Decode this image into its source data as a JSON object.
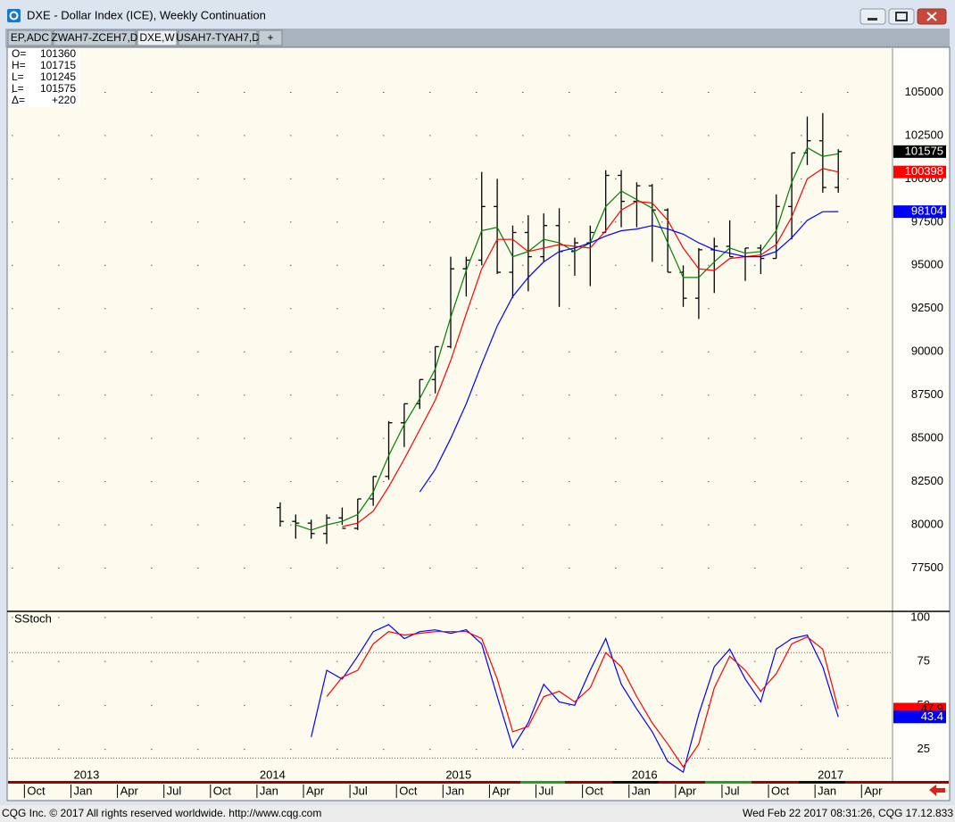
{
  "window": {
    "title": "DXE - Dollar Index (ICE), Weekly Continuation",
    "tabs": [
      "EP,ADC",
      "ZWAH7-ZCEH7,D",
      "DXE,W",
      "USAH7-TYAH7,D",
      "+"
    ]
  },
  "ohlc_info": [
    {
      "label": "O=",
      "value": 101360
    },
    {
      "label": "H=",
      "value": 101715
    },
    {
      "label": "L=",
      "value": 101245
    },
    {
      "label": "L=",
      "value": 101575
    },
    {
      "label": "Δ=",
      "value": "+220"
    }
  ],
  "chart_data": [
    {
      "type": "ohlc",
      "color": "#000000",
      "x": [
        "2014-02",
        "2014-03",
        "2014-04",
        "2014-05",
        "2014-06",
        "2014-07",
        "2014-08",
        "2014-09",
        "2014-10",
        "2014-11",
        "2014-12",
        "2015-01",
        "2015-02",
        "2015-03",
        "2015-04",
        "2015-05",
        "2015-06",
        "2015-07",
        "2015-08",
        "2015-09",
        "2015-10",
        "2015-11",
        "2015-12",
        "2016-01",
        "2016-02",
        "2016-03",
        "2016-04",
        "2016-05",
        "2016-06",
        "2016-07",
        "2016-08",
        "2016-09",
        "2016-10",
        "2016-11",
        "2016-12",
        "2017-01",
        "2017-02"
      ],
      "open": [
        81000,
        80200,
        80100,
        79500,
        80400,
        79800,
        81500,
        82800,
        85900,
        87000,
        88400,
        90300,
        94800,
        95300,
        98400,
        94600,
        96900,
        95500,
        97300,
        95800,
        96300,
        96900,
        100200,
        98700,
        99600,
        98200,
        94600,
        93100,
        95900,
        96100,
        95500,
        96000,
        95400,
        98400,
        101500,
        102200,
        99500
      ],
      "high": [
        81300,
        80600,
        80300,
        80600,
        81000,
        81500,
        82800,
        86000,
        87000,
        88400,
        90300,
        95500,
        95500,
        100400,
        100000,
        97300,
        97900,
        98000,
        98300,
        96600,
        97300,
        100500,
        100500,
        99800,
        99700,
        98300,
        95000,
        96000,
        96600,
        97600,
        96000,
        96200,
        99100,
        101500,
        103600,
        103800,
        101715
      ],
      "low": [
        79900,
        79200,
        79200,
        78900,
        80000,
        79700,
        81100,
        82600,
        84500,
        86700,
        87600,
        90200,
        93200,
        95000,
        94500,
        93100,
        93500,
        95200,
        92600,
        94400,
        93800,
        96900,
        97200,
        97200,
        95200,
        94600,
        92600,
        91900,
        93400,
        95500,
        94100,
        94500,
        95400,
        96500,
        100800,
        99200,
        99200
      ],
      "close": [
        80200,
        80100,
        79500,
        80400,
        79800,
        81500,
        82800,
        85900,
        87000,
        88400,
        90300,
        94800,
        95300,
        98400,
        94600,
        96900,
        95500,
        97300,
        95800,
        96300,
        96900,
        100200,
        98700,
        99600,
        98200,
        94600,
        93100,
        95900,
        96100,
        95500,
        96000,
        95400,
        98400,
        101500,
        102200,
        99500,
        101575
      ],
      "series": [
        {
          "color": "#008000",
          "values": [
            null,
            80000,
            79700,
            80000,
            80200,
            80600,
            81900,
            84000,
            85800,
            87300,
            89000,
            92000,
            94700,
            97000,
            97200,
            95500,
            95800,
            96500,
            96300,
            95800,
            96300,
            98400,
            99300,
            98800,
            98300,
            96300,
            94300,
            94300,
            95200,
            96000,
            95700,
            95800,
            97000,
            99800,
            101800,
            101300,
            101450
          ]
        },
        {
          "color": "#ff0000",
          "values": [
            null,
            null,
            null,
            null,
            79900,
            80100,
            80800,
            82200,
            83800,
            85500,
            87200,
            89500,
            92200,
            94800,
            96500,
            96500,
            95800,
            96000,
            96200,
            96100,
            96000,
            97000,
            98200,
            98700,
            98600,
            97600,
            96000,
            94800,
            94700,
            95400,
            95500,
            95600,
            96200,
            97800,
            100000,
            100600,
            100398
          ]
        },
        {
          "color": "#0000ff",
          "values": [
            null,
            null,
            null,
            null,
            null,
            null,
            null,
            null,
            null,
            81900,
            83200,
            85000,
            87000,
            89300,
            91500,
            93200,
            94300,
            95200,
            95800,
            96000,
            96300,
            96700,
            97000,
            97100,
            97300,
            97100,
            96800,
            96300,
            95900,
            95700,
            95500,
            95500,
            95800,
            96600,
            97600,
            98100,
            98104
          ]
        }
      ],
      "xlim": [
        "2012-09",
        "2017-06"
      ],
      "ylim": [
        75000,
        107500
      ],
      "yticks": [
        77500,
        80000,
        82500,
        85000,
        87500,
        90000,
        92500,
        95000,
        97500,
        100000,
        102500,
        105000
      ],
      "grid": true
    },
    {
      "type": "line",
      "title": "SStoch",
      "x": [
        "2014-04",
        "2014-05",
        "2014-06",
        "2014-07",
        "2014-08",
        "2014-09",
        "2014-10",
        "2014-11",
        "2014-12",
        "2015-01",
        "2015-02",
        "2015-03",
        "2015-04",
        "2015-05",
        "2015-06",
        "2015-07",
        "2015-08",
        "2015-09",
        "2015-10",
        "2015-11",
        "2015-12",
        "2016-01",
        "2016-02",
        "2016-03",
        "2016-04",
        "2016-05",
        "2016-06",
        "2016-07",
        "2016-08",
        "2016-09",
        "2016-10",
        "2016-11",
        "2016-12",
        "2017-01",
        "2017-02"
      ],
      "series": [
        {
          "color": "#0000ff",
          "values": [
            32,
            70,
            65,
            78,
            92,
            96,
            88,
            92,
            93,
            91,
            93,
            85,
            55,
            26,
            40,
            62,
            52,
            50,
            70,
            88,
            62,
            48,
            35,
            18,
            12,
            45,
            72,
            82,
            65,
            52,
            82,
            88,
            90,
            72,
            43.4
          ]
        },
        {
          "color": "#ff0000",
          "values": [
            null,
            55,
            66,
            70,
            85,
            92,
            90,
            91,
            92,
            92,
            92,
            88,
            65,
            35,
            38,
            55,
            58,
            52,
            60,
            80,
            72,
            55,
            40,
            28,
            15,
            28,
            60,
            78,
            70,
            58,
            68,
            85,
            89,
            82,
            47.9
          ]
        }
      ],
      "levels": [
        80,
        20
      ],
      "level_color": "#b04040",
      "xlim": [
        "2012-09",
        "2017-06"
      ],
      "ylim": [
        7,
        103
      ],
      "yticks": [
        25,
        50,
        75,
        100
      ],
      "grid": true,
      "xticks": [
        {
          "value": "2012-10",
          "label": "Oct"
        },
        {
          "value": "2013-01",
          "label": "Jan"
        },
        {
          "value": "2013-04",
          "label": "Apr"
        },
        {
          "value": "2013-07",
          "label": "Jul"
        },
        {
          "value": "2013-10",
          "label": "Oct"
        },
        {
          "value": "2014-01",
          "label": "Jan"
        },
        {
          "value": "2014-04",
          "label": "Apr"
        },
        {
          "value": "2014-07",
          "label": "Jul"
        },
        {
          "value": "2014-10",
          "label": "Oct"
        },
        {
          "value": "2015-01",
          "label": "Jan"
        },
        {
          "value": "2015-04",
          "label": "Apr"
        },
        {
          "value": "2015-07",
          "label": "Jul"
        },
        {
          "value": "2015-10",
          "label": "Oct"
        },
        {
          "value": "2016-01",
          "label": "Jan"
        },
        {
          "value": "2016-04",
          "label": "Apr"
        },
        {
          "value": "2016-07",
          "label": "Jul"
        },
        {
          "value": "2016-10",
          "label": "Oct"
        },
        {
          "value": "2017-01",
          "label": "Jan"
        },
        {
          "value": "2017-04",
          "label": "Apr"
        }
      ],
      "year_ticks": [
        {
          "value": "2013-01",
          "label": "2013"
        },
        {
          "value": "2014-01",
          "label": "2014"
        },
        {
          "value": "2015-01",
          "label": "2015"
        },
        {
          "value": "2016-01",
          "label": "2016"
        },
        {
          "value": "2017-01",
          "label": "2017"
        }
      ]
    }
  ],
  "footer": {
    "left": "CQG Inc. © 2017 All rights reserved worldwide. http://www.cqg.com",
    "right": "Wed Feb 22 2017 08:31:26, CQG 17.12.833"
  }
}
